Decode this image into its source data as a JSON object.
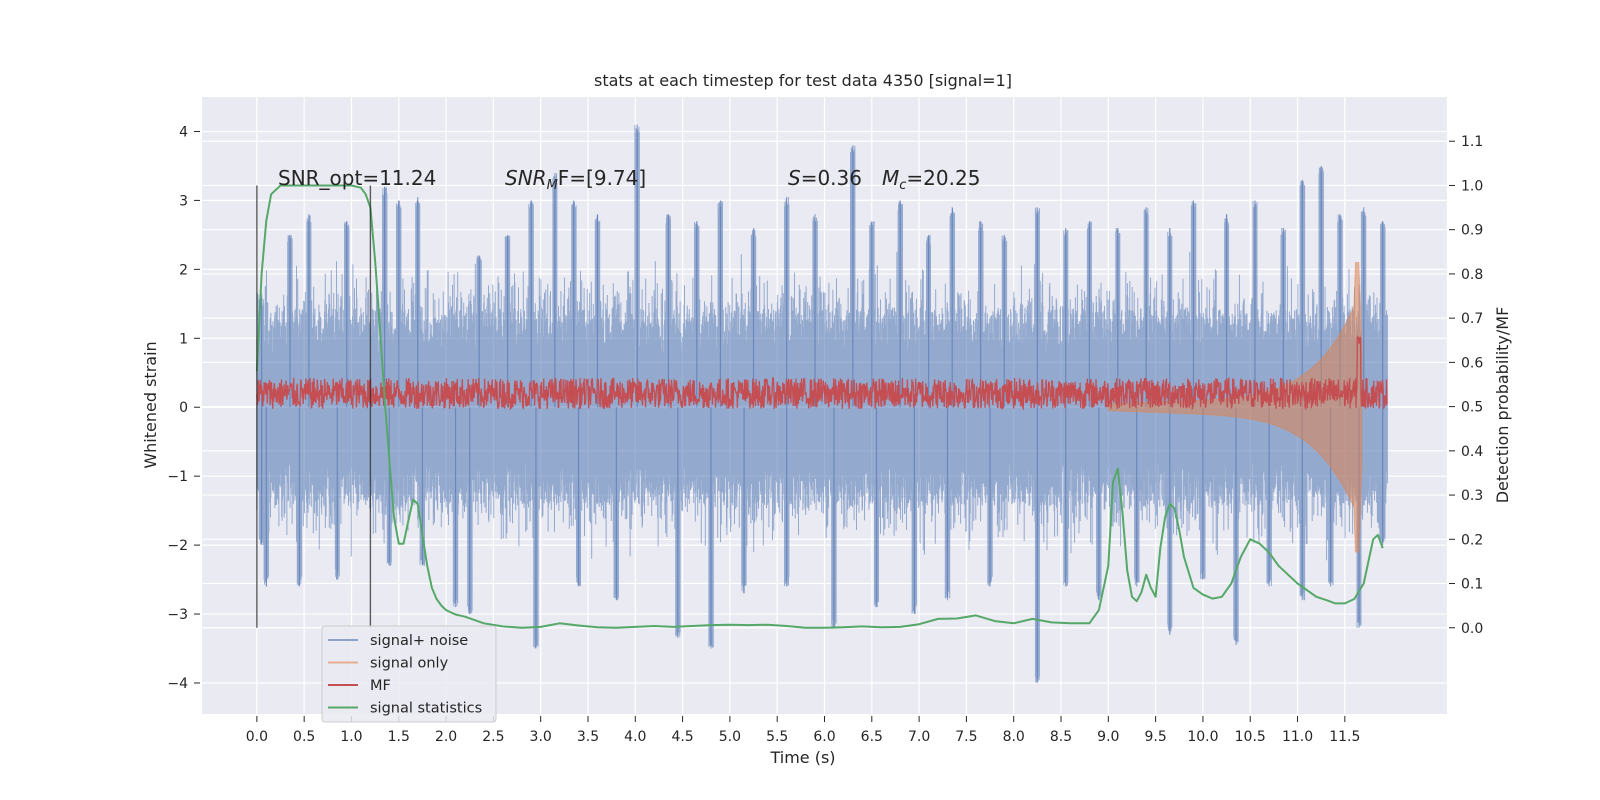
{
  "chart_data": {
    "type": "line",
    "title": "stats at each timestep for test data 4350 [signal=1]",
    "xlabel": "Time (s)",
    "ylabel_left": "Whitened strain",
    "ylabel_right": "Detection probability/MF",
    "xlim": [
      -0.58,
      12.58
    ],
    "ylim_left": [
      -4.45,
      4.5
    ],
    "ylim_right": [
      -0.195,
      1.2
    ],
    "x_ticks": [
      "0.0",
      "0.5",
      "1.0",
      "1.5",
      "2.0",
      "2.5",
      "3.0",
      "3.5",
      "4.0",
      "4.5",
      "5.0",
      "5.5",
      "6.0",
      "6.5",
      "7.0",
      "7.5",
      "8.0",
      "8.5",
      "9.0",
      "9.5",
      "10.0",
      "10.5",
      "11.0",
      "11.5"
    ],
    "y_ticks_left": [
      "4",
      "3",
      "2",
      "1",
      "0",
      "−1",
      "−2",
      "−3",
      "−4"
    ],
    "y_ticks_right": [
      "1.1",
      "1.0",
      "0.9",
      "0.8",
      "0.7",
      "0.6",
      "0.5",
      "0.4",
      "0.3",
      "0.2",
      "0.1",
      "0.0"
    ],
    "grid": true,
    "legend_position": "lower-left",
    "annotations": {
      "snr_opt": "SNR_opt=11.24",
      "snr_mf_italic": "SNR",
      "snr_mf_sub": "M",
      "snr_mf_rest": "F=[9.74]",
      "s_italic": "S",
      "s_rest": "=0.36",
      "mc_italic": "M",
      "mc_sub": "c",
      "mc_rest": "=20.25"
    },
    "vertical_markers": [
      0.0,
      1.2
    ],
    "series": [
      {
        "name": "signal+ noise",
        "color": "#4c72b0",
        "axis": "left",
        "envelope": {
          "x_range": [
            0.0,
            11.95
          ],
          "typical_upper": 1.3,
          "typical_lower": -1.3,
          "peaks": [
            [
              0.05,
              1.6
            ],
            [
              0.35,
              2.5
            ],
            [
              0.55,
              2.8
            ],
            [
              0.95,
              2.7
            ],
            [
              1.35,
              3.2
            ],
            [
              1.5,
              3.0
            ],
            [
              1.7,
              3.05
            ],
            [
              2.35,
              2.2
            ],
            [
              2.65,
              2.5
            ],
            [
              2.9,
              3.0
            ],
            [
              3.15,
              3.4
            ],
            [
              3.35,
              3.0
            ],
            [
              3.6,
              2.8
            ],
            [
              4.02,
              4.1
            ],
            [
              4.35,
              2.8
            ],
            [
              4.65,
              2.7
            ],
            [
              4.9,
              3.0
            ],
            [
              5.25,
              2.6
            ],
            [
              5.6,
              3.05
            ],
            [
              5.9,
              2.8
            ],
            [
              6.3,
              3.8
            ],
            [
              6.5,
              2.7
            ],
            [
              6.8,
              3.0
            ],
            [
              7.1,
              2.5
            ],
            [
              7.35,
              2.9
            ],
            [
              7.65,
              2.7
            ],
            [
              7.9,
              2.5
            ],
            [
              8.25,
              2.9
            ],
            [
              8.55,
              2.6
            ],
            [
              8.8,
              2.7
            ],
            [
              9.1,
              2.6
            ],
            [
              9.4,
              2.9
            ],
            [
              9.65,
              2.6
            ],
            [
              9.9,
              3.0
            ],
            [
              10.25,
              2.8
            ],
            [
              10.55,
              3.0
            ],
            [
              10.85,
              2.6
            ],
            [
              11.05,
              3.3
            ],
            [
              11.25,
              3.5
            ],
            [
              11.45,
              2.8
            ],
            [
              11.7,
              2.9
            ],
            [
              11.9,
              2.7
            ]
          ],
          "troughs": [
            [
              0.05,
              -2.0
            ],
            [
              0.1,
              -2.6
            ],
            [
              0.45,
              -2.6
            ],
            [
              0.85,
              -2.5
            ],
            [
              1.4,
              -2.3
            ],
            [
              1.75,
              -2.3
            ],
            [
              2.1,
              -2.9
            ],
            [
              2.25,
              -3.0
            ],
            [
              2.95,
              -3.5
            ],
            [
              3.4,
              -2.6
            ],
            [
              3.8,
              -2.8
            ],
            [
              4.45,
              -3.35
            ],
            [
              4.8,
              -3.5
            ],
            [
              5.15,
              -2.7
            ],
            [
              5.6,
              -2.6
            ],
            [
              6.1,
              -3.2
            ],
            [
              6.55,
              -2.9
            ],
            [
              6.95,
              -3.0
            ],
            [
              7.3,
              -2.8
            ],
            [
              7.75,
              -2.6
            ],
            [
              8.25,
              -4.0
            ],
            [
              8.55,
              -2.6
            ],
            [
              8.9,
              -2.8
            ],
            [
              9.3,
              -2.6
            ],
            [
              9.65,
              -3.3
            ],
            [
              10.0,
              -2.5
            ],
            [
              10.35,
              -3.45
            ],
            [
              10.7,
              -2.6
            ],
            [
              11.05,
              -2.8
            ],
            [
              11.35,
              -2.6
            ],
            [
              11.65,
              -3.2
            ],
            [
              11.9,
              -2.0
            ]
          ]
        }
      },
      {
        "name": "signal only",
        "color": "#dd8452",
        "axis": "left",
        "chirp": {
          "start_x": 9.0,
          "merger_x": 11.65,
          "peak_amplitude": 2.1
        }
      },
      {
        "name": "MF",
        "color": "#c44e52",
        "axis": "right",
        "x_range": [
          0.0,
          11.95
        ],
        "mean": 0.53,
        "spread": 0.035,
        "peak": [
          11.65,
          0.66
        ]
      },
      {
        "name": "signal statistics",
        "color": "#55a868",
        "axis": "right",
        "x": [
          0.0,
          0.05,
          0.1,
          0.15,
          0.25,
          0.4,
          0.6,
          0.8,
          1.0,
          1.1,
          1.15,
          1.2,
          1.25,
          1.3,
          1.35,
          1.4,
          1.45,
          1.5,
          1.55,
          1.6,
          1.65,
          1.7,
          1.75,
          1.8,
          1.85,
          1.9,
          1.95,
          2.0,
          2.1,
          2.2,
          2.4,
          2.6,
          2.8,
          3.0,
          3.2,
          3.4,
          3.6,
          3.8,
          4.0,
          4.2,
          4.4,
          4.6,
          4.8,
          5.0,
          5.2,
          5.4,
          5.6,
          5.8,
          6.0,
          6.2,
          6.4,
          6.6,
          6.8,
          7.0,
          7.2,
          7.4,
          7.6,
          7.8,
          8.0,
          8.2,
          8.4,
          8.6,
          8.8,
          8.9,
          9.0,
          9.05,
          9.1,
          9.15,
          9.2,
          9.25,
          9.3,
          9.35,
          9.4,
          9.45,
          9.5,
          9.55,
          9.6,
          9.65,
          9.7,
          9.75,
          9.8,
          9.9,
          10.0,
          10.1,
          10.2,
          10.3,
          10.4,
          10.5,
          10.6,
          10.7,
          10.8,
          10.9,
          11.0,
          11.1,
          11.2,
          11.3,
          11.4,
          11.5,
          11.6,
          11.7,
          11.8,
          11.85,
          11.9
        ],
        "y": [
          0.58,
          0.8,
          0.92,
          0.98,
          1.0,
          1.0,
          1.0,
          1.0,
          1.0,
          0.995,
          0.98,
          0.95,
          0.83,
          0.68,
          0.52,
          0.38,
          0.25,
          0.19,
          0.19,
          0.24,
          0.29,
          0.28,
          0.21,
          0.14,
          0.09,
          0.065,
          0.05,
          0.04,
          0.03,
          0.025,
          0.01,
          0.003,
          0.0,
          0.002,
          0.01,
          0.005,
          0.001,
          0.0,
          0.002,
          0.004,
          0.002,
          0.004,
          0.006,
          0.007,
          0.006,
          0.007,
          0.004,
          0.0,
          0.0,
          0.001,
          0.003,
          0.001,
          0.002,
          0.008,
          0.02,
          0.021,
          0.028,
          0.015,
          0.01,
          0.02,
          0.012,
          0.01,
          0.01,
          0.04,
          0.14,
          0.33,
          0.36,
          0.26,
          0.13,
          0.07,
          0.06,
          0.08,
          0.12,
          0.09,
          0.07,
          0.18,
          0.25,
          0.28,
          0.27,
          0.22,
          0.16,
          0.09,
          0.075,
          0.066,
          0.07,
          0.1,
          0.16,
          0.2,
          0.19,
          0.17,
          0.14,
          0.12,
          0.1,
          0.085,
          0.07,
          0.063,
          0.055,
          0.055,
          0.065,
          0.1,
          0.2,
          0.21,
          0.18
        ]
      }
    ]
  }
}
